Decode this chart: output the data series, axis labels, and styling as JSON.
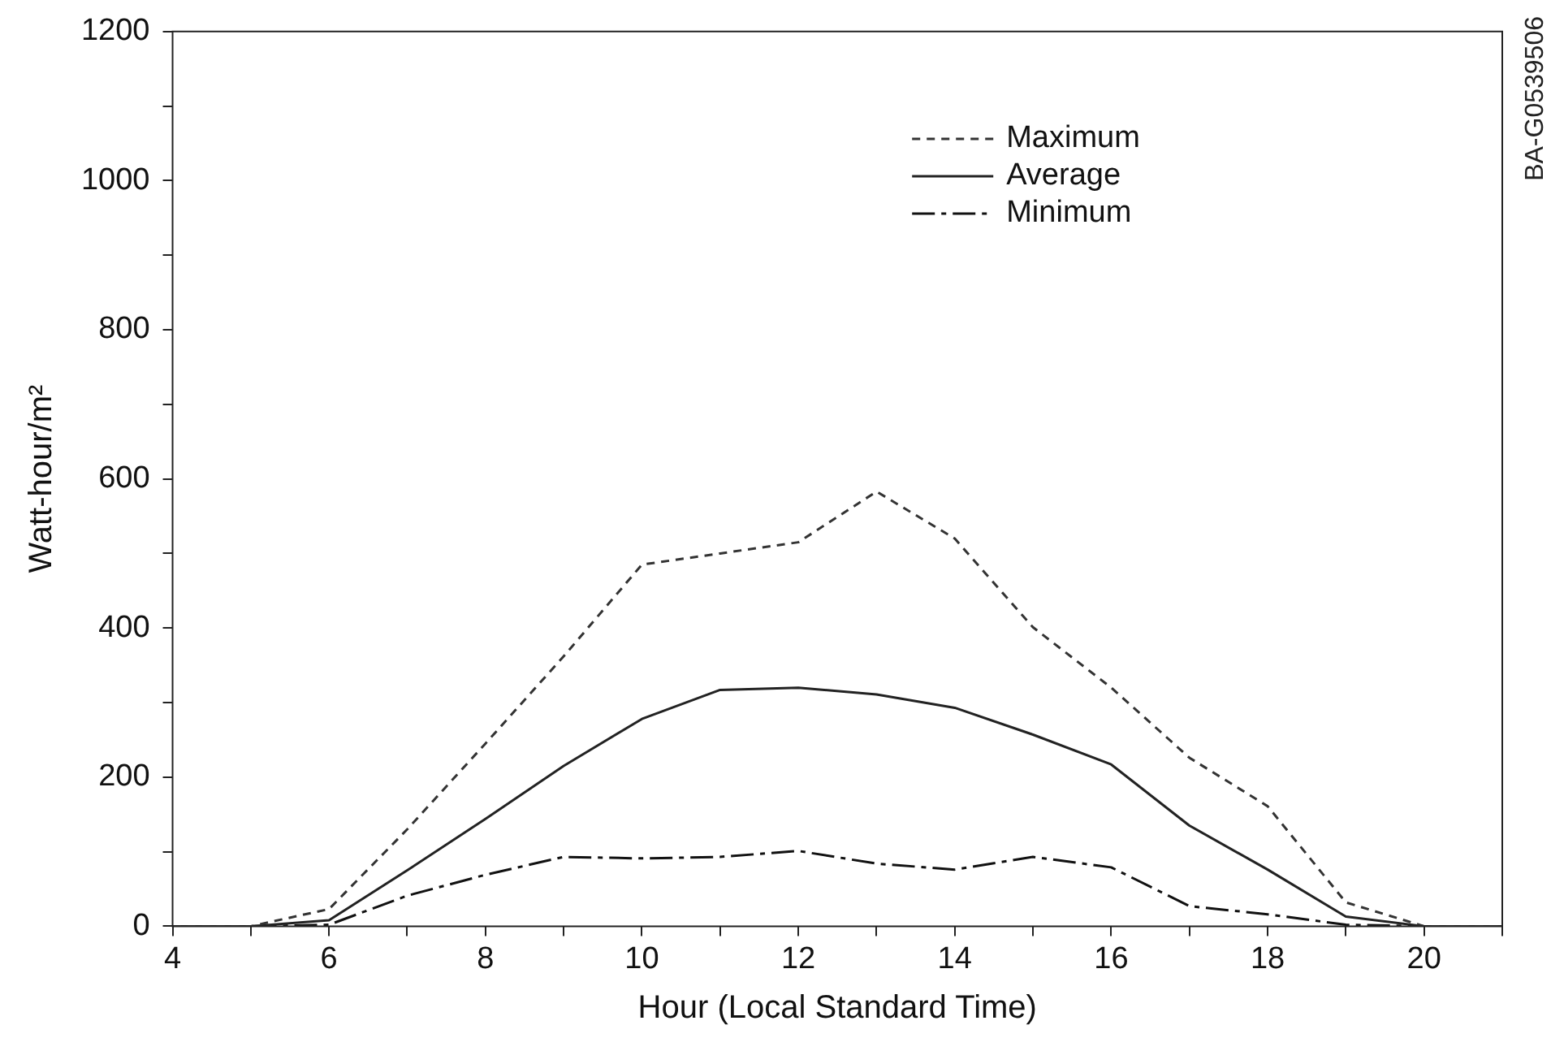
{
  "chart_data": {
    "type": "line",
    "xlabel": "Hour (Local Standard Time)",
    "ylabel": "Watt-hour/m²",
    "x": [
      4,
      5,
      6,
      7,
      8,
      9,
      10,
      11,
      12,
      13,
      14,
      15,
      16,
      17,
      18,
      19,
      20,
      21
    ],
    "series": [
      {
        "name": "Maximum",
        "color": "#333333",
        "line_style": "dashed",
        "values": [
          0,
          0,
          23,
          130,
          245,
          362,
          485,
          500,
          515,
          583,
          520,
          401,
          320,
          226,
          161,
          32,
          0,
          0
        ]
      },
      {
        "name": "Average",
        "color": "#222222",
        "line_style": "solid",
        "values": [
          0,
          0,
          8,
          75,
          144,
          215,
          278,
          317,
          320,
          311,
          293,
          257,
          217,
          135,
          76,
          13,
          0,
          0
        ]
      },
      {
        "name": "Minimum",
        "color": "#111111",
        "line_style": "dashdot",
        "values": [
          0,
          0,
          2,
          41,
          69,
          93,
          91,
          93,
          101,
          84,
          76,
          93,
          79,
          27,
          16,
          2,
          0,
          0
        ]
      }
    ],
    "xlim": [
      4,
      21
    ],
    "xticks": [
      4,
      {
        "value": 5,
        "label": null
      },
      6,
      {
        "value": 7,
        "label": null
      },
      8,
      {
        "value": 9,
        "label": null
      },
      10,
      {
        "value": 11,
        "label": null
      },
      12,
      {
        "value": 13,
        "label": null
      },
      14,
      {
        "value": 15,
        "label": null
      },
      16,
      {
        "value": 17,
        "label": null
      },
      18,
      {
        "value": 19,
        "label": null
      },
      20,
      {
        "value": 21,
        "label": null
      }
    ],
    "ylim": [
      0,
      1200
    ],
    "yticks": [
      0,
      {
        "value": 100,
        "label": null
      },
      200,
      {
        "value": 300,
        "label": null
      },
      400,
      {
        "value": 500,
        "label": null
      },
      600,
      {
        "value": 700,
        "label": null
      },
      800,
      {
        "value": 900,
        "label": null
      },
      1000,
      {
        "value": 1100,
        "label": null
      },
      1200
    ],
    "grid": false,
    "legend": "top right",
    "marker": "none",
    "annotations": [
      "BA-G0539506"
    ]
  }
}
